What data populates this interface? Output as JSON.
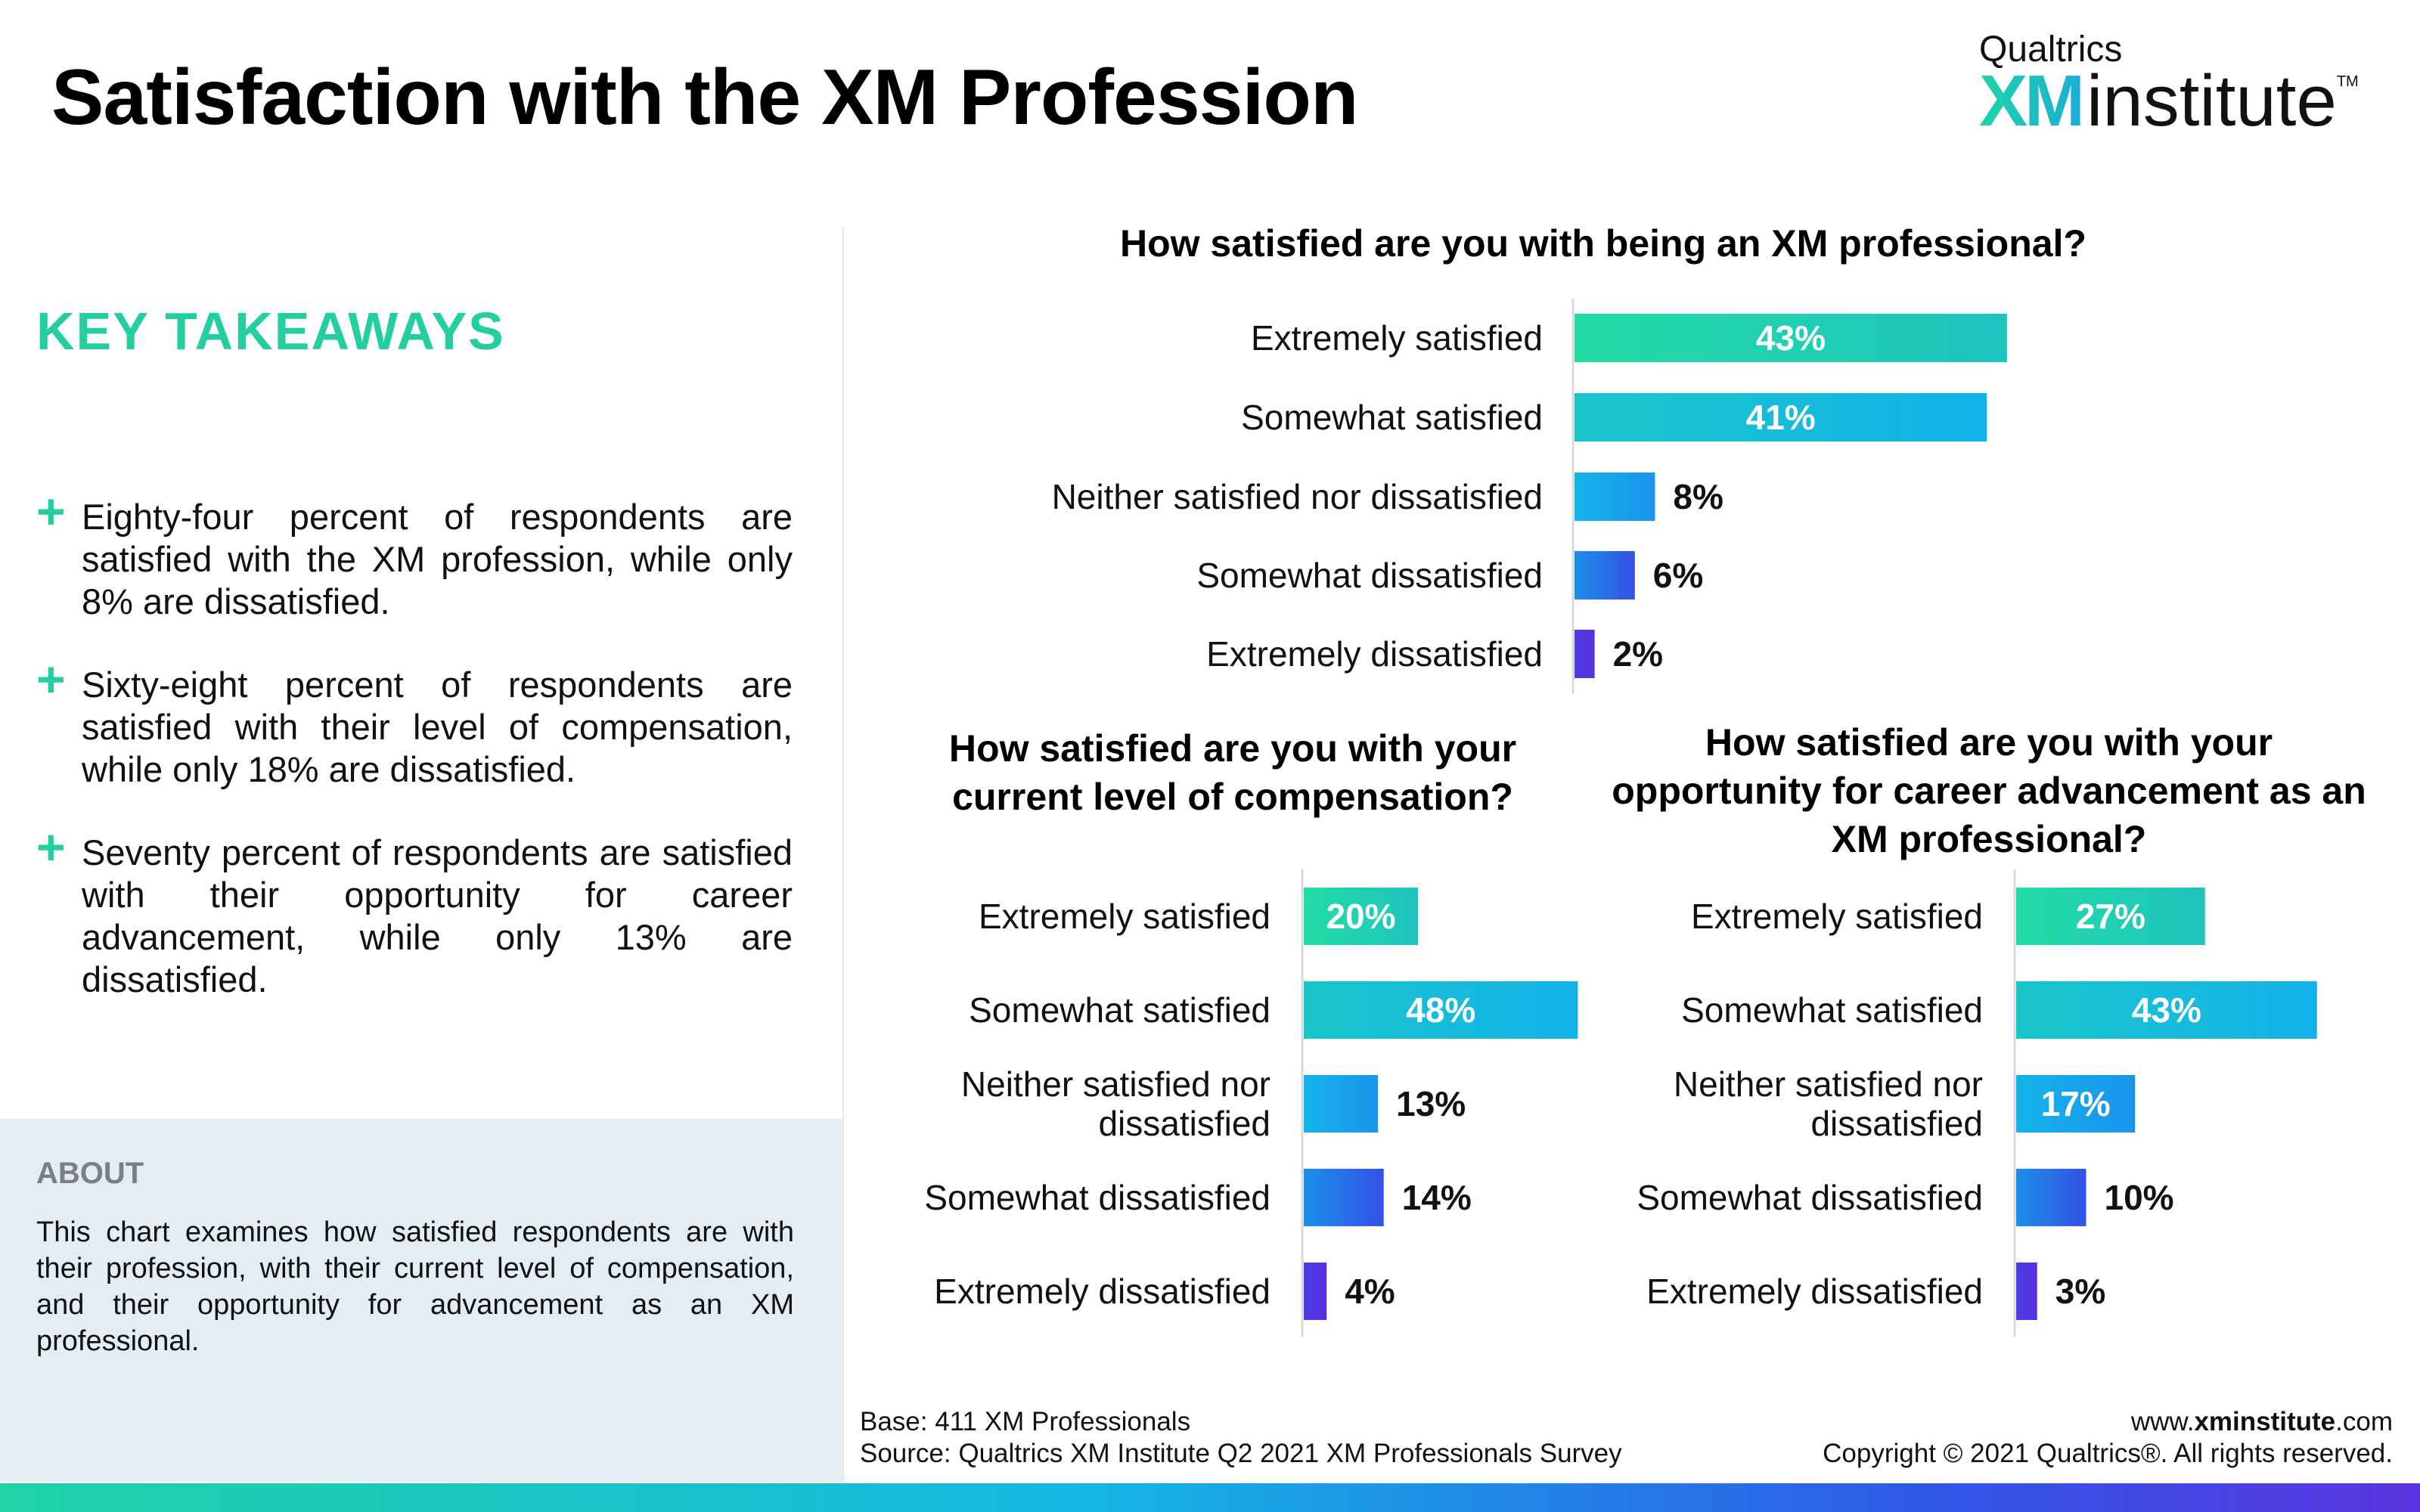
{
  "title": "Satisfaction with the XM Profession",
  "logo": {
    "top": "Qualtrics",
    "xm": "XM",
    "institute": "institute",
    "tm": "TM"
  },
  "key_takeaways": {
    "heading": "KEY TAKEAWAYS",
    "items": [
      "Eighty-four percent of respondents are satisfied with the XM profession, while only 8% are dissatisfied.",
      "Sixty-eight percent of respondents are satisfied with their level of compensation, while only 18% are dissatisfied.",
      "Seventy percent of respondents are satisfied with their opportunity for career advancement, while only 13% are dissatisfied."
    ]
  },
  "about": {
    "heading": "ABOUT",
    "text": "This chart examines how satisfied respondents are with their profession, with their current level of compensation, and their opportunity for advancement as an XM professional."
  },
  "footer": {
    "base": "Base: 411 XM Professionals",
    "source": "Source: Qualtrics XM Institute Q2 2021 XM Professionals Survey",
    "url_prefix": "www.",
    "url_bold": "xminstitute",
    "url_suffix": ".com",
    "copyright": "Copyright © 2021 Qualtrics®. All rights reserved."
  },
  "colors": {
    "extremely_satisfied": "#23d8a6",
    "somewhat_satisfied": "#1ab8e2",
    "neither": "#17a6ea",
    "somewhat_dissatisfied": "#2b6be8",
    "extremely_dissatisfied": "#5332e0",
    "accent": "#23cfa0"
  },
  "chart_data": [
    {
      "type": "bar",
      "orientation": "horizontal",
      "title": "How satisfied are you with being an XM professional?",
      "categories": [
        "Extremely satisfied",
        "Somewhat satisfied",
        "Neither satisfied nor dissatisfied",
        "Somewhat dissatisfied",
        "Extremely dissatisfied"
      ],
      "values": [
        43,
        41,
        8,
        6,
        2
      ],
      "labels": [
        "43%",
        "41%",
        "8%",
        "6%",
        "2%"
      ],
      "unit": "%"
    },
    {
      "type": "bar",
      "orientation": "horizontal",
      "title": "How satisfied are you with your current level of compensation?",
      "categories": [
        "Extremely satisfied",
        "Somewhat satisfied",
        "Neither satisfied nor dissatisfied",
        "Somewhat dissatisfied",
        "Extremely dissatisfied"
      ],
      "values": [
        20,
        48,
        13,
        14,
        4
      ],
      "labels": [
        "20%",
        "48%",
        "13%",
        "14%",
        "4%"
      ],
      "unit": "%"
    },
    {
      "type": "bar",
      "orientation": "horizontal",
      "title": "How satisfied are you with your opportunity for career advancement as an XM professional?",
      "categories": [
        "Extremely satisfied",
        "Somewhat satisfied",
        "Neither satisfied nor dissatisfied",
        "Somewhat dissatisfied",
        "Extremely dissatisfied"
      ],
      "values": [
        27,
        43,
        17,
        10,
        3
      ],
      "labels": [
        "27%",
        "43%",
        "17%",
        "10%",
        "3%"
      ],
      "unit": "%"
    }
  ]
}
